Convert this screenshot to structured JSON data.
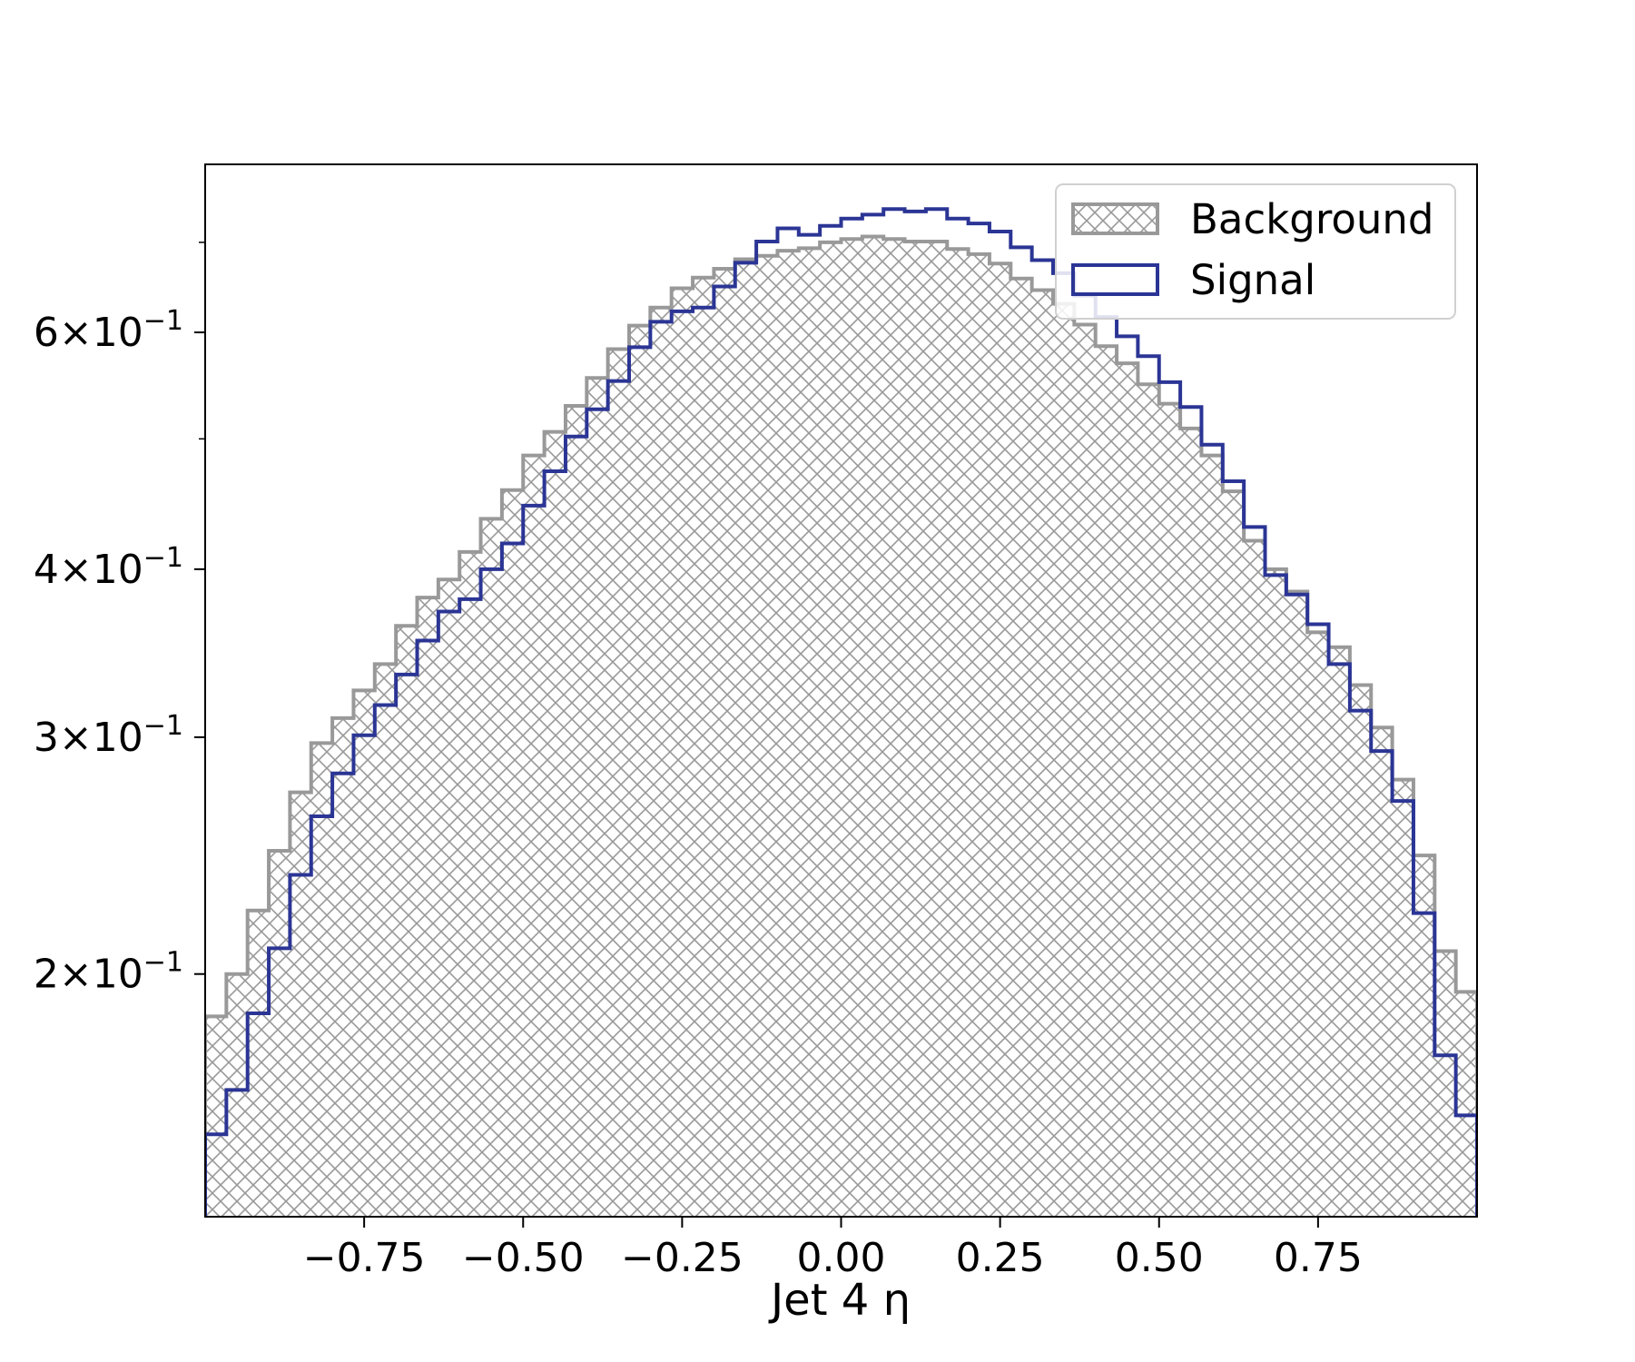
{
  "chart_data": {
    "type": "histogram",
    "title": "",
    "xlabel": "Jet 4 η",
    "ylabel": "",
    "xlim": [
      -1.0,
      1.0
    ],
    "ylim": [
      0.132,
      0.8
    ],
    "yscale": "log",
    "grid": false,
    "legend_placement": "top-right",
    "x_ticks": [
      {
        "value": -0.75,
        "label": "−0.75"
      },
      {
        "value": -0.5,
        "label": "−0.50"
      },
      {
        "value": -0.25,
        "label": "−0.25"
      },
      {
        "value": 0.0,
        "label": "0.00"
      },
      {
        "value": 0.25,
        "label": "0.25"
      },
      {
        "value": 0.5,
        "label": "0.50"
      },
      {
        "value": 0.75,
        "label": "0.75"
      }
    ],
    "y_ticks": [
      {
        "value": 0.2,
        "mantissa": "2",
        "exponent": "−1"
      },
      {
        "value": 0.3,
        "mantissa": "3",
        "exponent": "−1"
      },
      {
        "value": 0.4,
        "mantissa": "4",
        "exponent": "−1"
      },
      {
        "value": 0.6,
        "mantissa": "6",
        "exponent": "−1"
      }
    ],
    "y_minor_ticks": [
      0.5,
      0.7
    ],
    "bin_edges_range": [
      -1.0,
      1.0
    ],
    "n_bins": 60,
    "series": [
      {
        "name": "Background",
        "style": "hatched-fill",
        "color": "#999999",
        "values": [
          0.186,
          0.2,
          0.223,
          0.247,
          0.273,
          0.297,
          0.31,
          0.325,
          0.34,
          0.363,
          0.381,
          0.393,
          0.412,
          0.436,
          0.458,
          0.486,
          0.506,
          0.529,
          0.555,
          0.583,
          0.607,
          0.626,
          0.647,
          0.659,
          0.669,
          0.68,
          0.684,
          0.69,
          0.693,
          0.7,
          0.704,
          0.707,
          0.704,
          0.701,
          0.701,
          0.692,
          0.686,
          0.675,
          0.658,
          0.645,
          0.63,
          0.608,
          0.586,
          0.569,
          0.549,
          0.531,
          0.509,
          0.486,
          0.457,
          0.42,
          0.4,
          0.385,
          0.359,
          0.35,
          0.328,
          0.305,
          0.279,
          0.245,
          0.208,
          0.194
        ]
      },
      {
        "name": "Signal",
        "style": "step-line",
        "color": "#2b3595",
        "values": [
          0.152,
          0.164,
          0.187,
          0.209,
          0.237,
          0.262,
          0.282,
          0.301,
          0.317,
          0.334,
          0.354,
          0.372,
          0.38,
          0.4,
          0.418,
          0.446,
          0.473,
          0.502,
          0.526,
          0.552,
          0.585,
          0.611,
          0.622,
          0.626,
          0.649,
          0.676,
          0.701,
          0.717,
          0.709,
          0.72,
          0.729,
          0.734,
          0.741,
          0.738,
          0.741,
          0.729,
          0.723,
          0.713,
          0.694,
          0.679,
          0.664,
          0.639,
          0.616,
          0.596,
          0.576,
          0.551,
          0.528,
          0.495,
          0.465,
          0.43,
          0.396,
          0.383,
          0.364,
          0.34,
          0.314,
          0.293,
          0.269,
          0.222,
          0.174,
          0.157
        ]
      }
    ]
  }
}
